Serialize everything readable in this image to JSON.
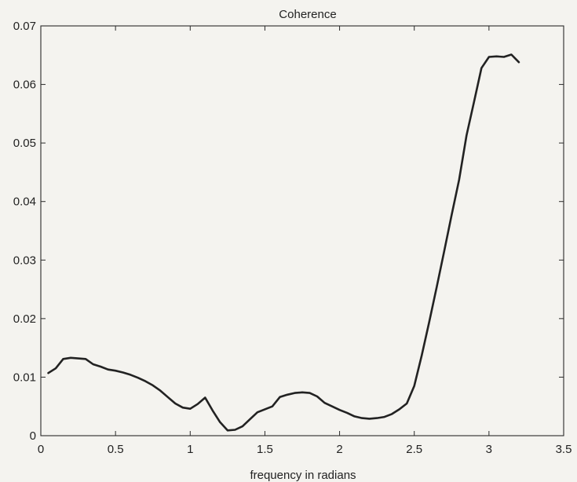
{
  "chart_data": {
    "type": "line",
    "title": "Coherence",
    "xlabel": "frequency in radians",
    "ylabel": "",
    "xlim": [
      0,
      3.5
    ],
    "ylim": [
      0,
      0.07
    ],
    "grid": false,
    "xticks": [
      0,
      0.5,
      1,
      1.5,
      2,
      2.5,
      3,
      3.5
    ],
    "xtick_labels": [
      "0",
      "0.5",
      "1",
      "1.5",
      "2",
      "2.5",
      "3",
      "3.5"
    ],
    "yticks": [
      0,
      0.01,
      0.02,
      0.03,
      0.04,
      0.05,
      0.06,
      0.07
    ],
    "ytick_labels": [
      "0",
      "0.01",
      "0.02",
      "0.03",
      "0.04",
      "0.05",
      "0.06",
      "0.07"
    ],
    "series": [
      {
        "color": "#222222",
        "x": [
          0.05,
          0.1,
          0.15,
          0.2,
          0.25,
          0.3,
          0.35,
          0.4,
          0.45,
          0.5,
          0.55,
          0.6,
          0.65,
          0.7,
          0.75,
          0.8,
          0.85,
          0.9,
          0.95,
          1.0,
          1.05,
          1.1,
          1.15,
          1.2,
          1.25,
          1.3,
          1.35,
          1.4,
          1.45,
          1.5,
          1.55,
          1.6,
          1.65,
          1.7,
          1.75,
          1.8,
          1.85,
          1.9,
          1.95,
          2.0,
          2.05,
          2.1,
          2.15,
          2.2,
          2.25,
          2.3,
          2.35,
          2.4,
          2.45,
          2.5,
          2.55,
          2.6,
          2.65,
          2.7,
          2.75,
          2.8,
          2.85,
          2.9,
          2.95,
          3.0,
          3.05,
          3.1,
          3.15,
          3.2
        ],
        "y": [
          0.0107,
          0.0115,
          0.0131,
          0.0133,
          0.0132,
          0.0131,
          0.0122,
          0.0118,
          0.0113,
          0.0111,
          0.0108,
          0.0104,
          0.0099,
          0.0093,
          0.0086,
          0.0077,
          0.0066,
          0.0055,
          0.0048,
          0.0046,
          0.0054,
          0.0065,
          0.0043,
          0.0023,
          0.0009,
          0.001,
          0.0016,
          0.0028,
          0.004,
          0.0045,
          0.005,
          0.0066,
          0.007,
          0.0073,
          0.0074,
          0.0073,
          0.0067,
          0.0056,
          0.005,
          0.0044,
          0.0039,
          0.0033,
          0.003,
          0.0029,
          0.003,
          0.0032,
          0.0037,
          0.0045,
          0.0055,
          0.0085,
          0.0137,
          0.0194,
          0.0254,
          0.0315,
          0.0377,
          0.0437,
          0.0513,
          0.057,
          0.0628,
          0.0647,
          0.0648,
          0.0647,
          0.0651,
          0.0638
        ]
      }
    ]
  }
}
